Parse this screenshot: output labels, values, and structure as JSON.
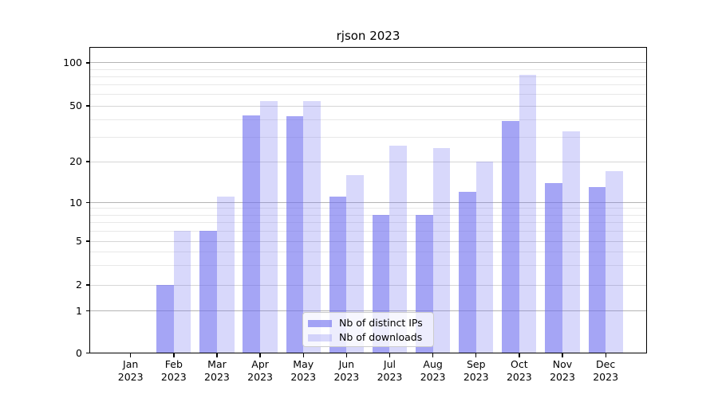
{
  "title": "rjson 2023",
  "axes": {
    "y_tick_labels": [
      "0",
      "1",
      "2",
      "5",
      "10",
      "20",
      "50",
      "100"
    ],
    "x_year": "2023",
    "months": [
      "Jan",
      "Feb",
      "Mar",
      "Apr",
      "May",
      "Jun",
      "Jul",
      "Aug",
      "Sep",
      "Oct",
      "Nov",
      "Dec"
    ]
  },
  "legend": {
    "items": [
      {
        "label": "Nb of distinct IPs",
        "alpha": 0.62
      },
      {
        "label": "Nb of downloads",
        "alpha": 0.27
      }
    ]
  },
  "colors": {
    "bar_base": "#6E6EEF",
    "major_grid": "#b4b4b4",
    "labeled_grid": "#d6d6d6",
    "minor_grid": "#e8e8e8",
    "spine": "#000000"
  },
  "chart_data": {
    "type": "bar",
    "title": "rjson 2023",
    "categories": [
      "Jan 2023",
      "Feb 2023",
      "Mar 2023",
      "Apr 2023",
      "May 2023",
      "Jun 2023",
      "Jul 2023",
      "Aug 2023",
      "Sep 2023",
      "Oct 2023",
      "Nov 2023",
      "Dec 2023"
    ],
    "series": [
      {
        "name": "Nb of distinct IPs",
        "values": [
          0,
          2,
          6,
          43,
          42,
          11,
          8,
          8,
          12,
          39,
          14,
          13
        ]
      },
      {
        "name": "Nb of downloads",
        "values": [
          0,
          6,
          11,
          54,
          54,
          16,
          26,
          25,
          20,
          82,
          33,
          17
        ]
      }
    ],
    "ylabel": "",
    "xlabel": "",
    "yscale": "log-like",
    "y_ticks": [
      0,
      1,
      2,
      5,
      10,
      20,
      50,
      100
    ],
    "y_major_gridlines": [
      1,
      10,
      100
    ],
    "y_labeled_gridlines": [
      2,
      5,
      20,
      50
    ],
    "y_minor_gridlines": [
      3,
      4,
      6,
      7,
      8,
      9,
      30,
      40,
      60,
      70,
      80,
      90
    ],
    "ylim": [
      0,
      130
    ],
    "grid": true,
    "legend_position": "lower center"
  }
}
